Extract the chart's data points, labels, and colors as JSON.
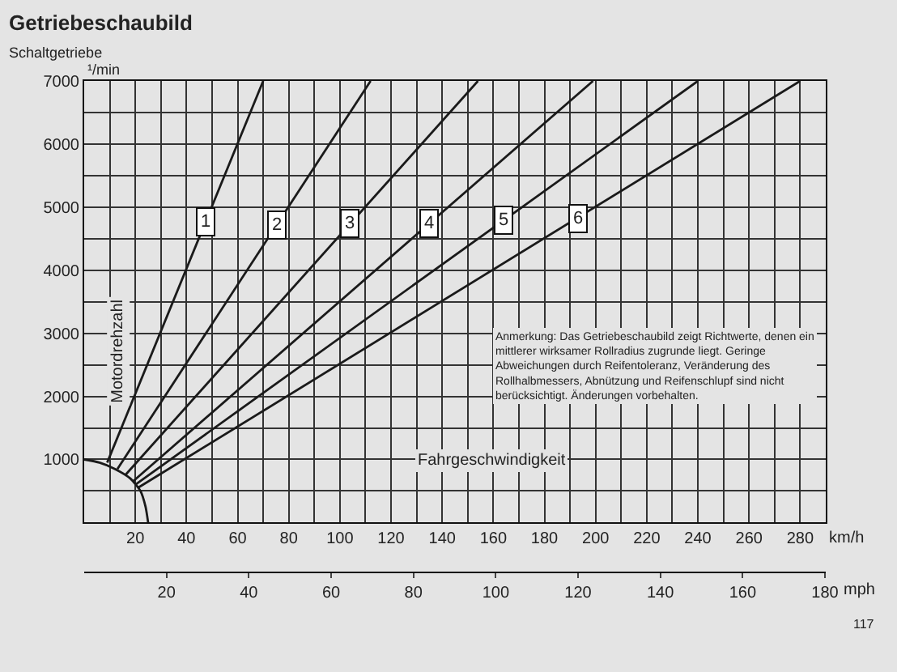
{
  "chart_data": {
    "type": "line",
    "title": "Getriebeschaubild",
    "subtitle": "Schaltgetriebe",
    "xlabel": "Fahrgeschwindigkeit",
    "ylabel": "Motordrehzahl",
    "xlim": [
      0,
      290
    ],
    "ylim": [
      0,
      7000
    ],
    "xticks": [
      {
        "value": 10,
        "label": null
      },
      20,
      {
        "value": 30,
        "label": null
      },
      40,
      {
        "value": 50,
        "label": null
      },
      60,
      {
        "value": 70,
        "label": null
      },
      80,
      {
        "value": 90,
        "label": null
      },
      100,
      {
        "value": 110,
        "label": null
      },
      120,
      {
        "value": 130,
        "label": null
      },
      140,
      {
        "value": 150,
        "label": null
      },
      160,
      {
        "value": 170,
        "label": null
      },
      180,
      {
        "value": 190,
        "label": null
      },
      200,
      {
        "value": 210,
        "label": null
      },
      220,
      {
        "value": 230,
        "label": null
      },
      240,
      {
        "value": 250,
        "label": null
      },
      260,
      {
        "value": 270,
        "label": null
      },
      280
    ],
    "yticks": [
      {
        "value": 500,
        "label": null
      },
      1000,
      {
        "value": 1500,
        "label": null
      },
      2000,
      {
        "value": 2500,
        "label": null
      },
      3000,
      {
        "value": 3500,
        "label": null
      },
      4000,
      {
        "value": 4500,
        "label": null
      },
      5000,
      {
        "value": 5500,
        "label": null
      },
      6000,
      {
        "value": 6500,
        "label": null
      },
      7000
    ],
    "x2lim": [
      0,
      180.2
    ],
    "x2ticks": [
      20,
      40,
      60,
      80,
      100,
      120,
      140,
      160,
      180
    ],
    "grid": true,
    "marker": "none",
    "line_style": "solid",
    "series": [
      {
        "color": "#1a1a1a",
        "x": [
          9,
          70
        ],
        "values": [
          950,
          7000
        ]
      },
      {
        "color": "#1a1a1a",
        "x": [
          13,
          112
        ],
        "values": [
          850,
          7000
        ]
      },
      {
        "color": "#1a1a1a",
        "x": [
          16,
          154
        ],
        "values": [
          750,
          7000
        ]
      },
      {
        "color": "#1a1a1a",
        "x": [
          19,
          199
        ],
        "values": [
          650,
          7000
        ]
      },
      {
        "color": "#1a1a1a",
        "x": [
          20,
          240
        ],
        "values": [
          600,
          7000
        ]
      },
      {
        "color": "#1a1a1a",
        "x": [
          21,
          280
        ],
        "values": [
          550,
          7000
        ]
      },
      {
        "color": "#1a1a1a",
        "x": [
          0,
          6,
          12,
          18,
          22,
          24,
          25
        ],
        "values": [
          1000,
          950,
          850,
          700,
          500,
          250,
          0
        ]
      }
    ],
    "annotations": [
      {
        "text": "1",
        "x": 47.6,
        "y": 4760
      },
      {
        "text": "2",
        "x": 75.6,
        "y": 4725
      },
      {
        "text": "3",
        "x": 104,
        "y": 4730
      },
      {
        "text": "4",
        "x": 135,
        "y": 4750
      },
      {
        "text": "5",
        "x": 164,
        "y": 4790
      },
      {
        "text": "6",
        "x": 193,
        "y": 4820
      },
      "¹/min",
      "km/h",
      "mph",
      "Anmerkung: Das Getriebeschaubild zeigt Richtwerte, denen ein mittlerer wirksamer Rollradius zugrunde liegt. Geringe Abweichungen durch Reifentoleranz, Veränderung des Rollhalbmessers, Abnützung und Reifenschlupf sind nicht berücksichtigt. Änderungen vorbehalten.",
      "117"
    ]
  }
}
